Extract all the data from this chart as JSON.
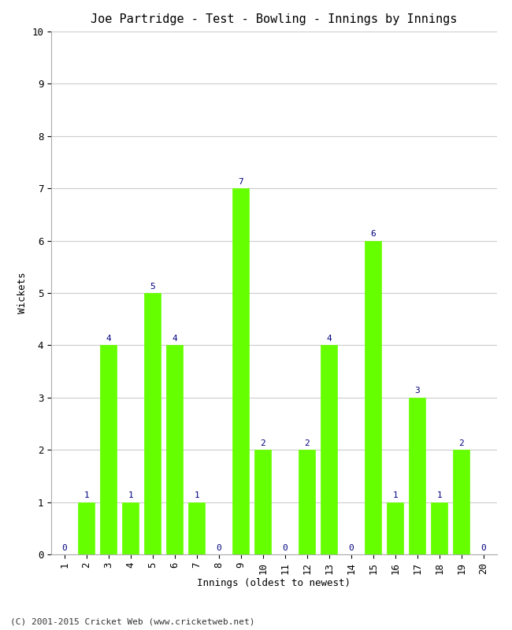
{
  "title": "Joe Partridge - Test - Bowling - Innings by Innings",
  "xlabel": "Innings (oldest to newest)",
  "ylabel": "Wickets",
  "categories": [
    1,
    2,
    3,
    4,
    5,
    6,
    7,
    8,
    9,
    10,
    11,
    12,
    13,
    14,
    15,
    16,
    17,
    18,
    19,
    20
  ],
  "values": [
    0,
    1,
    4,
    1,
    5,
    4,
    1,
    0,
    7,
    2,
    0,
    2,
    4,
    0,
    6,
    1,
    3,
    1,
    2,
    0
  ],
  "bar_color": "#66ff00",
  "bar_edge_color": "#66ff00",
  "label_color": "#000080",
  "background_color": "#ffffff",
  "ylim": [
    0,
    10
  ],
  "yticks": [
    0,
    1,
    2,
    3,
    4,
    5,
    6,
    7,
    8,
    9,
    10
  ],
  "grid_color": "#cccccc",
  "title_fontsize": 11,
  "axis_label_fontsize": 9,
  "tick_fontsize": 9,
  "bar_label_fontsize": 8,
  "footer": "(C) 2001-2015 Cricket Web (www.cricketweb.net)",
  "footer_fontsize": 8
}
